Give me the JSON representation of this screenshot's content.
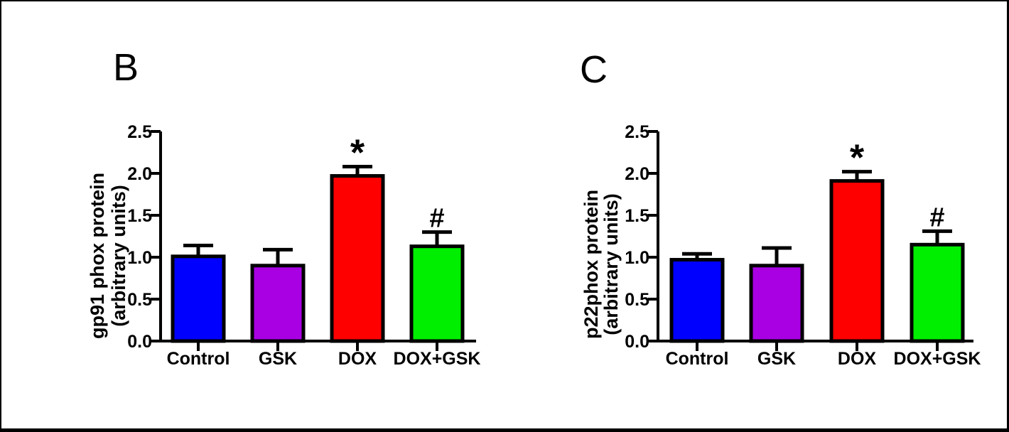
{
  "figure": {
    "background_color": "#ffffff",
    "frame_color": "#000000"
  },
  "chart_data": [
    {
      "type": "bar",
      "panel_label": "B",
      "ylabel_line1": "gp91 phox protein",
      "ylabel_line2": "(arbitrary units)",
      "categories": [
        "Control",
        "GSK",
        "DOX",
        "DOX+GSK"
      ],
      "values": [
        1.01,
        0.9,
        1.97,
        1.13
      ],
      "errors_up": [
        0.13,
        0.19,
        0.11,
        0.17
      ],
      "annotations": [
        "",
        "",
        "*",
        "#"
      ],
      "bar_colors": [
        "#0000ff",
        "#a800e3",
        "#ff0000",
        "#00ee00"
      ],
      "bar_outline_color": "#000000",
      "error_bar_color": "#000000",
      "ylim": [
        0.0,
        2.5
      ],
      "ytick_step": 0.5,
      "ytick_labels": [
        "0.0",
        "0.5",
        "1.0",
        "1.5",
        "2.0",
        "2.5"
      ],
      "grid": "off",
      "legend": "none"
    },
    {
      "type": "bar",
      "panel_label": "C",
      "ylabel_line1": "p22phox protein",
      "ylabel_line2": "(arbitrary units)",
      "categories": [
        "Control",
        "GSK",
        "DOX",
        "DOX+GSK"
      ],
      "values": [
        0.97,
        0.9,
        1.91,
        1.15
      ],
      "errors_up": [
        0.07,
        0.21,
        0.11,
        0.16
      ],
      "annotations": [
        "",
        "",
        "*",
        "#"
      ],
      "bar_colors": [
        "#0000ff",
        "#a800e3",
        "#ff0000",
        "#00ee00"
      ],
      "bar_outline_color": "#000000",
      "error_bar_color": "#000000",
      "ylim": [
        0.0,
        2.5
      ],
      "ytick_step": 0.5,
      "ytick_labels": [
        "0.0",
        "0.5",
        "1.0",
        "1.5",
        "2.0",
        "2.5"
      ],
      "grid": "off",
      "legend": "none"
    }
  ]
}
